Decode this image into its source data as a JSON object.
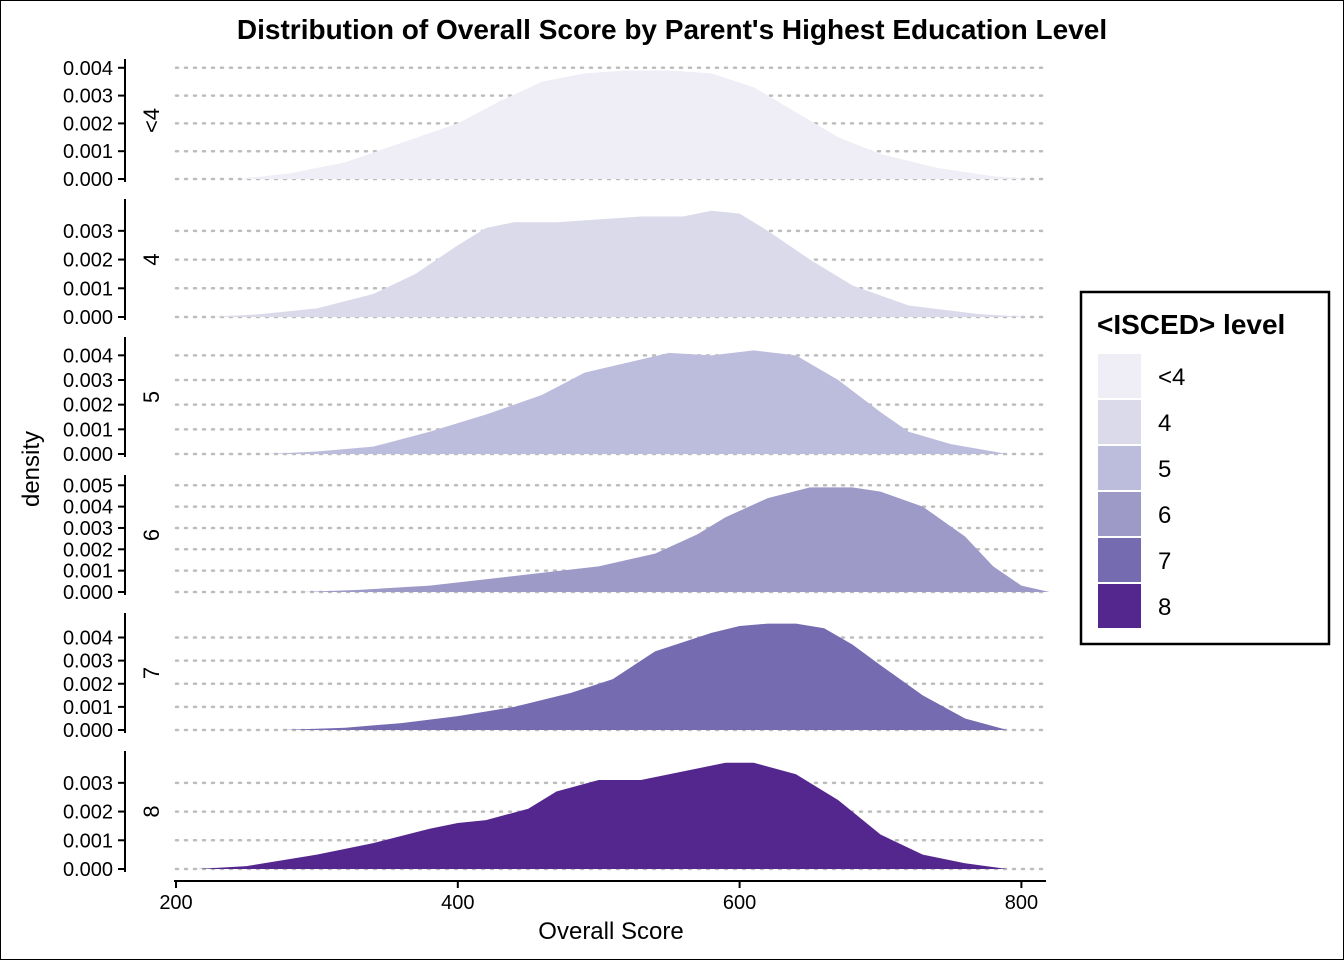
{
  "chart_data": {
    "type": "area",
    "title": "Distribution of Overall Score by Parent's Highest Education Level",
    "xlabel": "Overall Score",
    "ylabel": "density",
    "xlim": [
      200,
      815
    ],
    "x_ticks": [
      200,
      400,
      600,
      800
    ],
    "grid": "horizontal dotted",
    "legend": {
      "title": "<ISCED> level",
      "placement": "right",
      "entries": [
        {
          "label": "<4",
          "color": "#efedf5"
        },
        {
          "label": "4",
          "color": "#dadaeb"
        },
        {
          "label": "5",
          "color": "#bcbddc"
        },
        {
          "label": "6",
          "color": "#9e9ac8"
        },
        {
          "label": "7",
          "color": "#756bb1"
        },
        {
          "label": "8",
          "color": "#54278f"
        }
      ]
    },
    "panels": [
      {
        "name": "<4",
        "color": "#efedf5",
        "ylim": [
          0,
          0.0041
        ],
        "y_ticks": [
          0,
          0.001,
          0.002,
          0.003,
          0.004
        ],
        "y_tick_labels": [
          "0.000",
          "0.001",
          "0.002",
          "0.003",
          "0.004"
        ],
        "x": [
          245,
          280,
          320,
          360,
          400,
          430,
          460,
          490,
          520,
          550,
          580,
          610,
          640,
          670,
          700,
          740,
          780,
          805
        ],
        "y": [
          0.0,
          0.0002,
          0.0006,
          0.0013,
          0.002,
          0.0028,
          0.0035,
          0.0038,
          0.0039,
          0.0039,
          0.0038,
          0.0033,
          0.0024,
          0.0015,
          0.0009,
          0.0004,
          0.0001,
          0.0
        ]
      },
      {
        "name": "4",
        "color": "#dadaeb",
        "ylim": [
          0,
          0.0039
        ],
        "y_ticks": [
          0,
          0.001,
          0.002,
          0.003
        ],
        "y_tick_labels": [
          "0.000",
          "0.001",
          "0.002",
          "0.003"
        ],
        "x": [
          225,
          260,
          300,
          340,
          370,
          400,
          420,
          440,
          470,
          500,
          530,
          560,
          580,
          600,
          620,
          650,
          680,
          720,
          770,
          805
        ],
        "y": [
          0.0,
          0.0001,
          0.0003,
          0.0008,
          0.0015,
          0.0025,
          0.0031,
          0.0033,
          0.0033,
          0.0034,
          0.0035,
          0.0035,
          0.0037,
          0.0036,
          0.003,
          0.002,
          0.0011,
          0.0004,
          0.0001,
          0.0
        ]
      },
      {
        "name": "5",
        "color": "#bcbddc",
        "ylim": [
          0,
          0.0045
        ],
        "y_ticks": [
          0,
          0.001,
          0.002,
          0.003,
          0.004
        ],
        "y_tick_labels": [
          "0.000",
          "0.001",
          "0.002",
          "0.003",
          "0.004"
        ],
        "x": [
          265,
          300,
          340,
          380,
          420,
          460,
          490,
          520,
          550,
          580,
          610,
          640,
          670,
          700,
          720,
          750,
          780,
          790
        ],
        "y": [
          0.0,
          0.0001,
          0.0003,
          0.0009,
          0.0016,
          0.0024,
          0.0033,
          0.0037,
          0.0041,
          0.004,
          0.0042,
          0.004,
          0.003,
          0.0017,
          0.0009,
          0.0004,
          0.0001,
          0.0
        ]
      },
      {
        "name": "6",
        "color": "#9e9ac8",
        "ylim": [
          0,
          0.0052
        ],
        "y_ticks": [
          0,
          0.001,
          0.002,
          0.003,
          0.004,
          0.005
        ],
        "y_tick_labels": [
          "0.000",
          "0.001",
          "0.002",
          "0.003",
          "0.004",
          "0.005"
        ],
        "x": [
          290,
          330,
          380,
          420,
          460,
          500,
          540,
          570,
          590,
          620,
          650,
          680,
          700,
          730,
          760,
          780,
          800,
          820
        ],
        "y": [
          0.0,
          0.0001,
          0.0003,
          0.0006,
          0.0009,
          0.0012,
          0.0018,
          0.0027,
          0.0035,
          0.0044,
          0.0049,
          0.0049,
          0.0047,
          0.004,
          0.0026,
          0.0012,
          0.0003,
          0.0
        ]
      },
      {
        "name": "7",
        "color": "#756bb1",
        "ylim": [
          0,
          0.0048
        ],
        "y_ticks": [
          0,
          0.001,
          0.002,
          0.003,
          0.004
        ],
        "y_tick_labels": [
          "0.000",
          "0.001",
          "0.002",
          "0.003",
          "0.004"
        ],
        "x": [
          275,
          320,
          360,
          400,
          440,
          480,
          510,
          540,
          560,
          580,
          600,
          620,
          640,
          660,
          680,
          700,
          730,
          760,
          790
        ],
        "y": [
          0.0,
          0.0001,
          0.0003,
          0.0006,
          0.001,
          0.0016,
          0.0022,
          0.0034,
          0.0038,
          0.0042,
          0.0045,
          0.0046,
          0.0046,
          0.0044,
          0.0037,
          0.0028,
          0.0015,
          0.0005,
          0.0
        ]
      },
      {
        "name": "8",
        "color": "#54278f",
        "ylim": [
          0,
          0.0039
        ],
        "y_ticks": [
          0,
          0.001,
          0.002,
          0.003
        ],
        "y_tick_labels": [
          "0.000",
          "0.001",
          "0.002",
          "0.003"
        ],
        "x": [
          215,
          250,
          300,
          340,
          380,
          400,
          420,
          450,
          470,
          500,
          530,
          560,
          590,
          610,
          640,
          670,
          700,
          730,
          760,
          790
        ],
        "y": [
          0.0,
          0.0001,
          0.0005,
          0.0009,
          0.0014,
          0.0016,
          0.0017,
          0.0021,
          0.0027,
          0.0031,
          0.0031,
          0.0034,
          0.0037,
          0.0037,
          0.0033,
          0.0024,
          0.0012,
          0.0005,
          0.0002,
          0.0
        ]
      }
    ]
  }
}
